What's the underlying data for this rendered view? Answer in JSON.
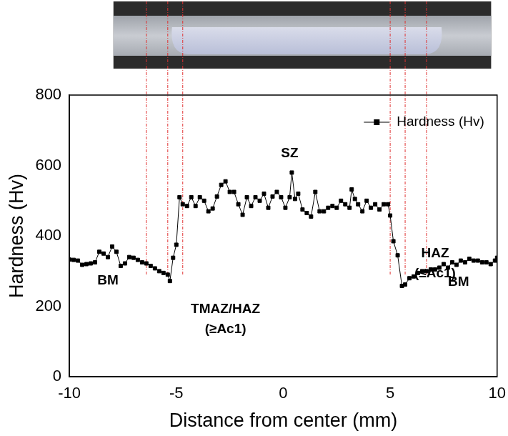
{
  "chart_data": {
    "type": "line",
    "x_label": "Distance from center (mm)",
    "y_label": "Hardness (Hv)",
    "xlim": [
      -10,
      10
    ],
    "xticks": [
      -10,
      -5,
      0,
      5,
      10
    ],
    "ylim": [
      0,
      800
    ],
    "yticks": [
      0,
      200,
      400,
      600,
      800
    ],
    "grid": false,
    "legend": "upper right",
    "series": [
      {
        "name": "Hardness (Hv)",
        "color": "#000000",
        "marker": "square",
        "line_style": "solid",
        "x": [
          -10,
          -9.8,
          -9.6,
          -9.4,
          -9.2,
          -9.0,
          -8.8,
          -8.6,
          -8.4,
          -8.2,
          -8.0,
          -7.8,
          -7.6,
          -7.4,
          -7.2,
          -7.0,
          -6.8,
          -6.6,
          -6.4,
          -6.2,
          -6.0,
          -5.8,
          -5.6,
          -5.4,
          -5.3,
          -5.15,
          -5.0,
          -4.85,
          -4.7,
          -4.5,
          -4.3,
          -4.1,
          -3.9,
          -3.7,
          -3.5,
          -3.3,
          -3.1,
          -2.9,
          -2.7,
          -2.5,
          -2.3,
          -2.1,
          -1.9,
          -1.7,
          -1.5,
          -1.3,
          -1.1,
          -0.9,
          -0.7,
          -0.5,
          -0.3,
          -0.1,
          0.1,
          0.3,
          0.4,
          0.55,
          0.7,
          0.9,
          1.1,
          1.3,
          1.5,
          1.7,
          1.9,
          2.1,
          2.3,
          2.5,
          2.7,
          2.9,
          3.1,
          3.2,
          3.35,
          3.5,
          3.7,
          3.9,
          4.1,
          4.3,
          4.5,
          4.7,
          4.9,
          5.0,
          5.15,
          5.35,
          5.55,
          5.7,
          5.9,
          6.1,
          6.3,
          6.5,
          6.7,
          6.9,
          7.1,
          7.3,
          7.5,
          7.7,
          7.9,
          8.1,
          8.3,
          8.5,
          8.7,
          8.9,
          9.1,
          9.3,
          9.5,
          9.7,
          9.9,
          10.0
        ],
        "values": [
          333,
          332,
          330,
          318,
          320,
          322,
          325,
          355,
          350,
          340,
          370,
          355,
          315,
          322,
          340,
          338,
          332,
          325,
          322,
          315,
          308,
          300,
          295,
          290,
          272,
          338,
          375,
          510,
          490,
          485,
          510,
          485,
          510,
          500,
          470,
          478,
          512,
          545,
          555,
          525,
          525,
          490,
          460,
          510,
          485,
          510,
          500,
          520,
          480,
          512,
          525,
          510,
          480,
          510,
          580,
          505,
          520,
          475,
          465,
          455,
          525,
          470,
          470,
          480,
          485,
          480,
          500,
          490,
          480,
          532,
          505,
          490,
          470,
          500,
          480,
          490,
          475,
          490,
          490,
          458,
          385,
          345,
          258,
          262,
          280,
          285,
          295,
          300,
          300,
          305,
          305,
          310,
          320,
          310,
          325,
          318,
          330,
          325,
          335,
          330,
          330,
          325,
          325,
          320,
          330,
          338
        ]
      }
    ],
    "annotations": [
      {
        "text": "SZ",
        "x": 0.3,
        "y": 635
      },
      {
        "text": "BM",
        "x": -8.2,
        "y": 273
      },
      {
        "text": "TMAZ/HAZ\n(≥Ac1)",
        "x": -2.7,
        "y": 164
      },
      {
        "text": "HAZ\n(≤Ac1)",
        "x": 7.1,
        "y": 322
      },
      {
        "text": "BM",
        "x": 8.2,
        "y": 269
      }
    ],
    "boundaries": [
      -6.4,
      -5.4,
      -4.7,
      5.0,
      5.7,
      6.7
    ]
  }
}
